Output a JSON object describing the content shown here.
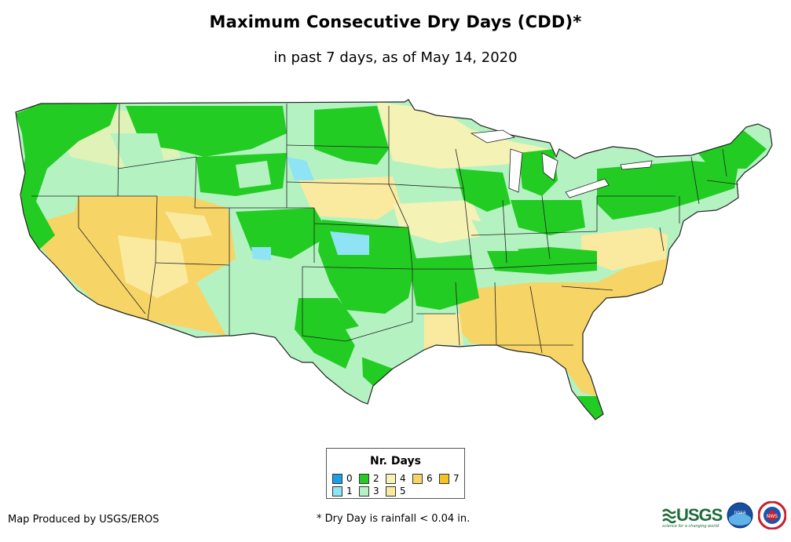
{
  "title": "Maximum Consecutive Dry Days (CDD)*",
  "subtitle": "in past 7 days, as of May 14, 2020",
  "legend": {
    "title": "Nr. Days",
    "items": [
      {
        "label": "0",
        "color": "#1aa0e6"
      },
      {
        "label": "1",
        "color": "#8ee3f5"
      },
      {
        "label": "2",
        "color": "#22cc22"
      },
      {
        "label": "3",
        "color": "#b4f2c2"
      },
      {
        "label": "4",
        "color": "#f4f2b4"
      },
      {
        "label": "5",
        "color": "#faeaa0"
      },
      {
        "label": "6",
        "color": "#f7d466"
      },
      {
        "label": "7",
        "color": "#f5c21f"
      }
    ]
  },
  "footer": {
    "producer": "Map Produced by USGS/EROS",
    "note": "* Dry Day is rainfall < 0.04 in."
  },
  "logos": {
    "usgs": "USGS",
    "usgs_tagline": "science for a changing world",
    "noaa": "noaa",
    "nws": "NWS"
  }
}
